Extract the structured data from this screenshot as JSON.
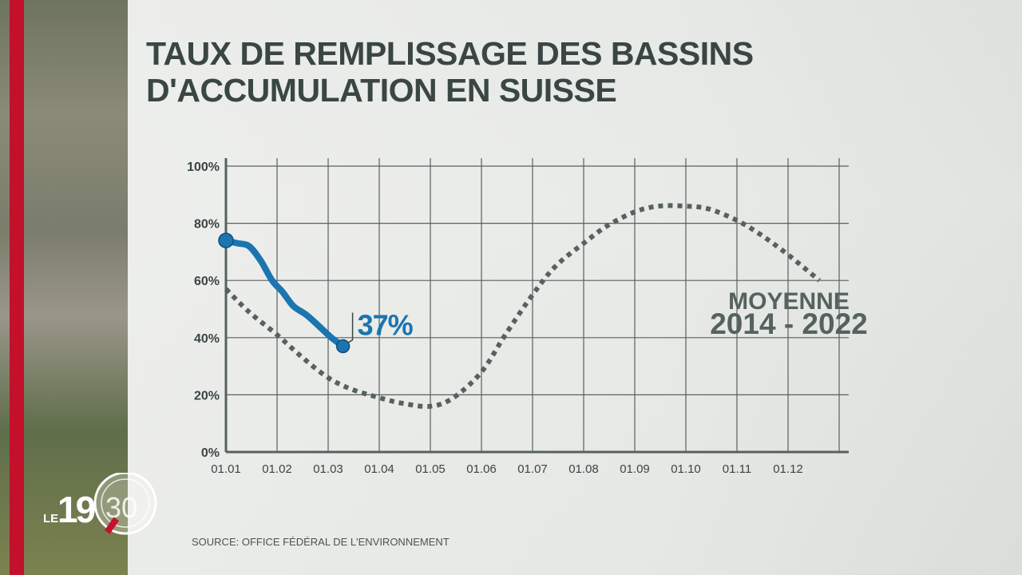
{
  "title": {
    "line1": "TAUX DE REMPLISSAGE DES BASSINS",
    "line2": "D'ACCUMULATION EN SUISSE"
  },
  "source": "SOURCE: OFFICE FÉDÉRAL DE L'ENVIRONNEMENT",
  "logo": {
    "prefix": "LE",
    "hour": "19",
    "minute": "30"
  },
  "colors": {
    "current": "#1a75b0",
    "average": "#56625f",
    "brand_red": "#c3102b",
    "text": "#3a4644"
  },
  "chart_data": {
    "type": "line",
    "title": "TAUX DE REMPLISSAGE DES BASSINS D'ACCUMULATION EN SUISSE",
    "ylim": [
      0,
      100
    ],
    "yticks": [
      "0%",
      "20%",
      "40%",
      "60%",
      "80%",
      "100%"
    ],
    "xticks": [
      "01.01",
      "01.02",
      "01.03",
      "01.04",
      "01.05",
      "01.06",
      "01.07",
      "01.08",
      "01.09",
      "01.10",
      "01.11",
      "01.12"
    ],
    "grid": true,
    "series": [
      {
        "style": "solid",
        "points": [
          [
            "01.01",
            74
          ],
          [
            "08.01",
            73
          ],
          [
            "15.01",
            72
          ],
          [
            "22.01",
            67
          ],
          [
            "29.01",
            60
          ],
          [
            "04.02",
            56
          ],
          [
            "10.02",
            51
          ],
          [
            "17.02",
            48
          ],
          [
            "24.02",
            44
          ],
          [
            "03.03",
            40
          ],
          [
            "10.03",
            37
          ]
        ],
        "end_label": "37%"
      },
      {
        "name": "MOYENNE 2014 - 2022",
        "style": "dotted",
        "points": [
          [
            "01.01",
            57
          ],
          [
            "15.01",
            49
          ],
          [
            "01.02",
            41
          ],
          [
            "15.02",
            33
          ],
          [
            "01.03",
            26
          ],
          [
            "15.03",
            22
          ],
          [
            "01.04",
            19
          ],
          [
            "15.04",
            17
          ],
          [
            "01.05",
            16
          ],
          [
            "15.05",
            19
          ],
          [
            "01.06",
            28
          ],
          [
            "15.06",
            41
          ],
          [
            "01.07",
            55
          ],
          [
            "15.07",
            65
          ],
          [
            "01.08",
            73
          ],
          [
            "15.08",
            79
          ],
          [
            "01.09",
            84
          ],
          [
            "15.09",
            86
          ],
          [
            "01.10",
            86
          ],
          [
            "15.10",
            85
          ],
          [
            "01.11",
            81
          ],
          [
            "15.11",
            76
          ],
          [
            "01.12",
            69
          ],
          [
            "20.12",
            60
          ]
        ]
      }
    ],
    "legend_label": {
      "line1": "MOYENNE",
      "line2": "2014 - 2022"
    }
  }
}
